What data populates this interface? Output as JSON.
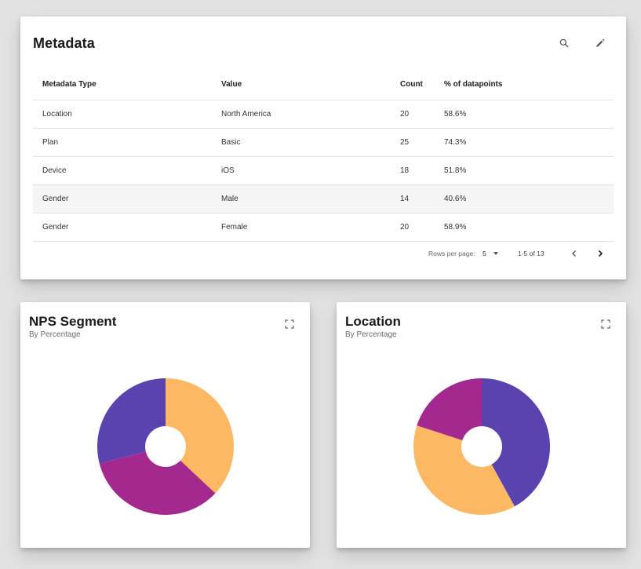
{
  "metadata": {
    "title": "Metadata",
    "columns": [
      "Metadata Type",
      "Value",
      "Count",
      "% of datapoints"
    ],
    "rows": [
      {
        "type": "Location",
        "value": "North America",
        "count": "20",
        "percent": "58.6%"
      },
      {
        "type": "Plan",
        "value": "Basic",
        "count": "25",
        "percent": "74.3%"
      },
      {
        "type": "Device",
        "value": "iOS",
        "count": "18",
        "percent": "51.8%"
      },
      {
        "type": "Gender",
        "value": "Male",
        "count": "14",
        "percent": "40.6%"
      },
      {
        "type": "Gender",
        "value": "Female",
        "count": "20",
        "percent": "58.9%"
      }
    ],
    "pagination": {
      "rows_per_page_label": "Rows per page:",
      "rows_per_page_value": "5",
      "range_label": "1-5 of 13"
    },
    "icons": {
      "search": "search-icon",
      "edit": "pencil-icon",
      "prev": "chevron-left-icon",
      "next": "chevron-right-icon"
    }
  },
  "nps_card": {
    "title": "NPS Segment",
    "subtitle": "By Percentage",
    "expand_icon": "fullscreen-icon"
  },
  "location_card": {
    "title": "Location",
    "subtitle": "By Percentage",
    "expand_icon": "fullscreen-icon"
  },
  "chart_data": [
    {
      "type": "pie",
      "title": "NPS Segment",
      "subtitle": "By Percentage",
      "slices": [
        {
          "value": 37,
          "color": "#FDB863"
        },
        {
          "value": 34,
          "color": "#A4298E"
        },
        {
          "value": 29,
          "color": "#5A43AE"
        }
      ]
    },
    {
      "type": "pie",
      "title": "Location",
      "subtitle": "By Percentage",
      "slices": [
        {
          "value": 42,
          "color": "#5A43AE"
        },
        {
          "value": 38,
          "color": "#FDB863"
        },
        {
          "value": 20,
          "color": "#A4298E"
        }
      ]
    }
  ]
}
